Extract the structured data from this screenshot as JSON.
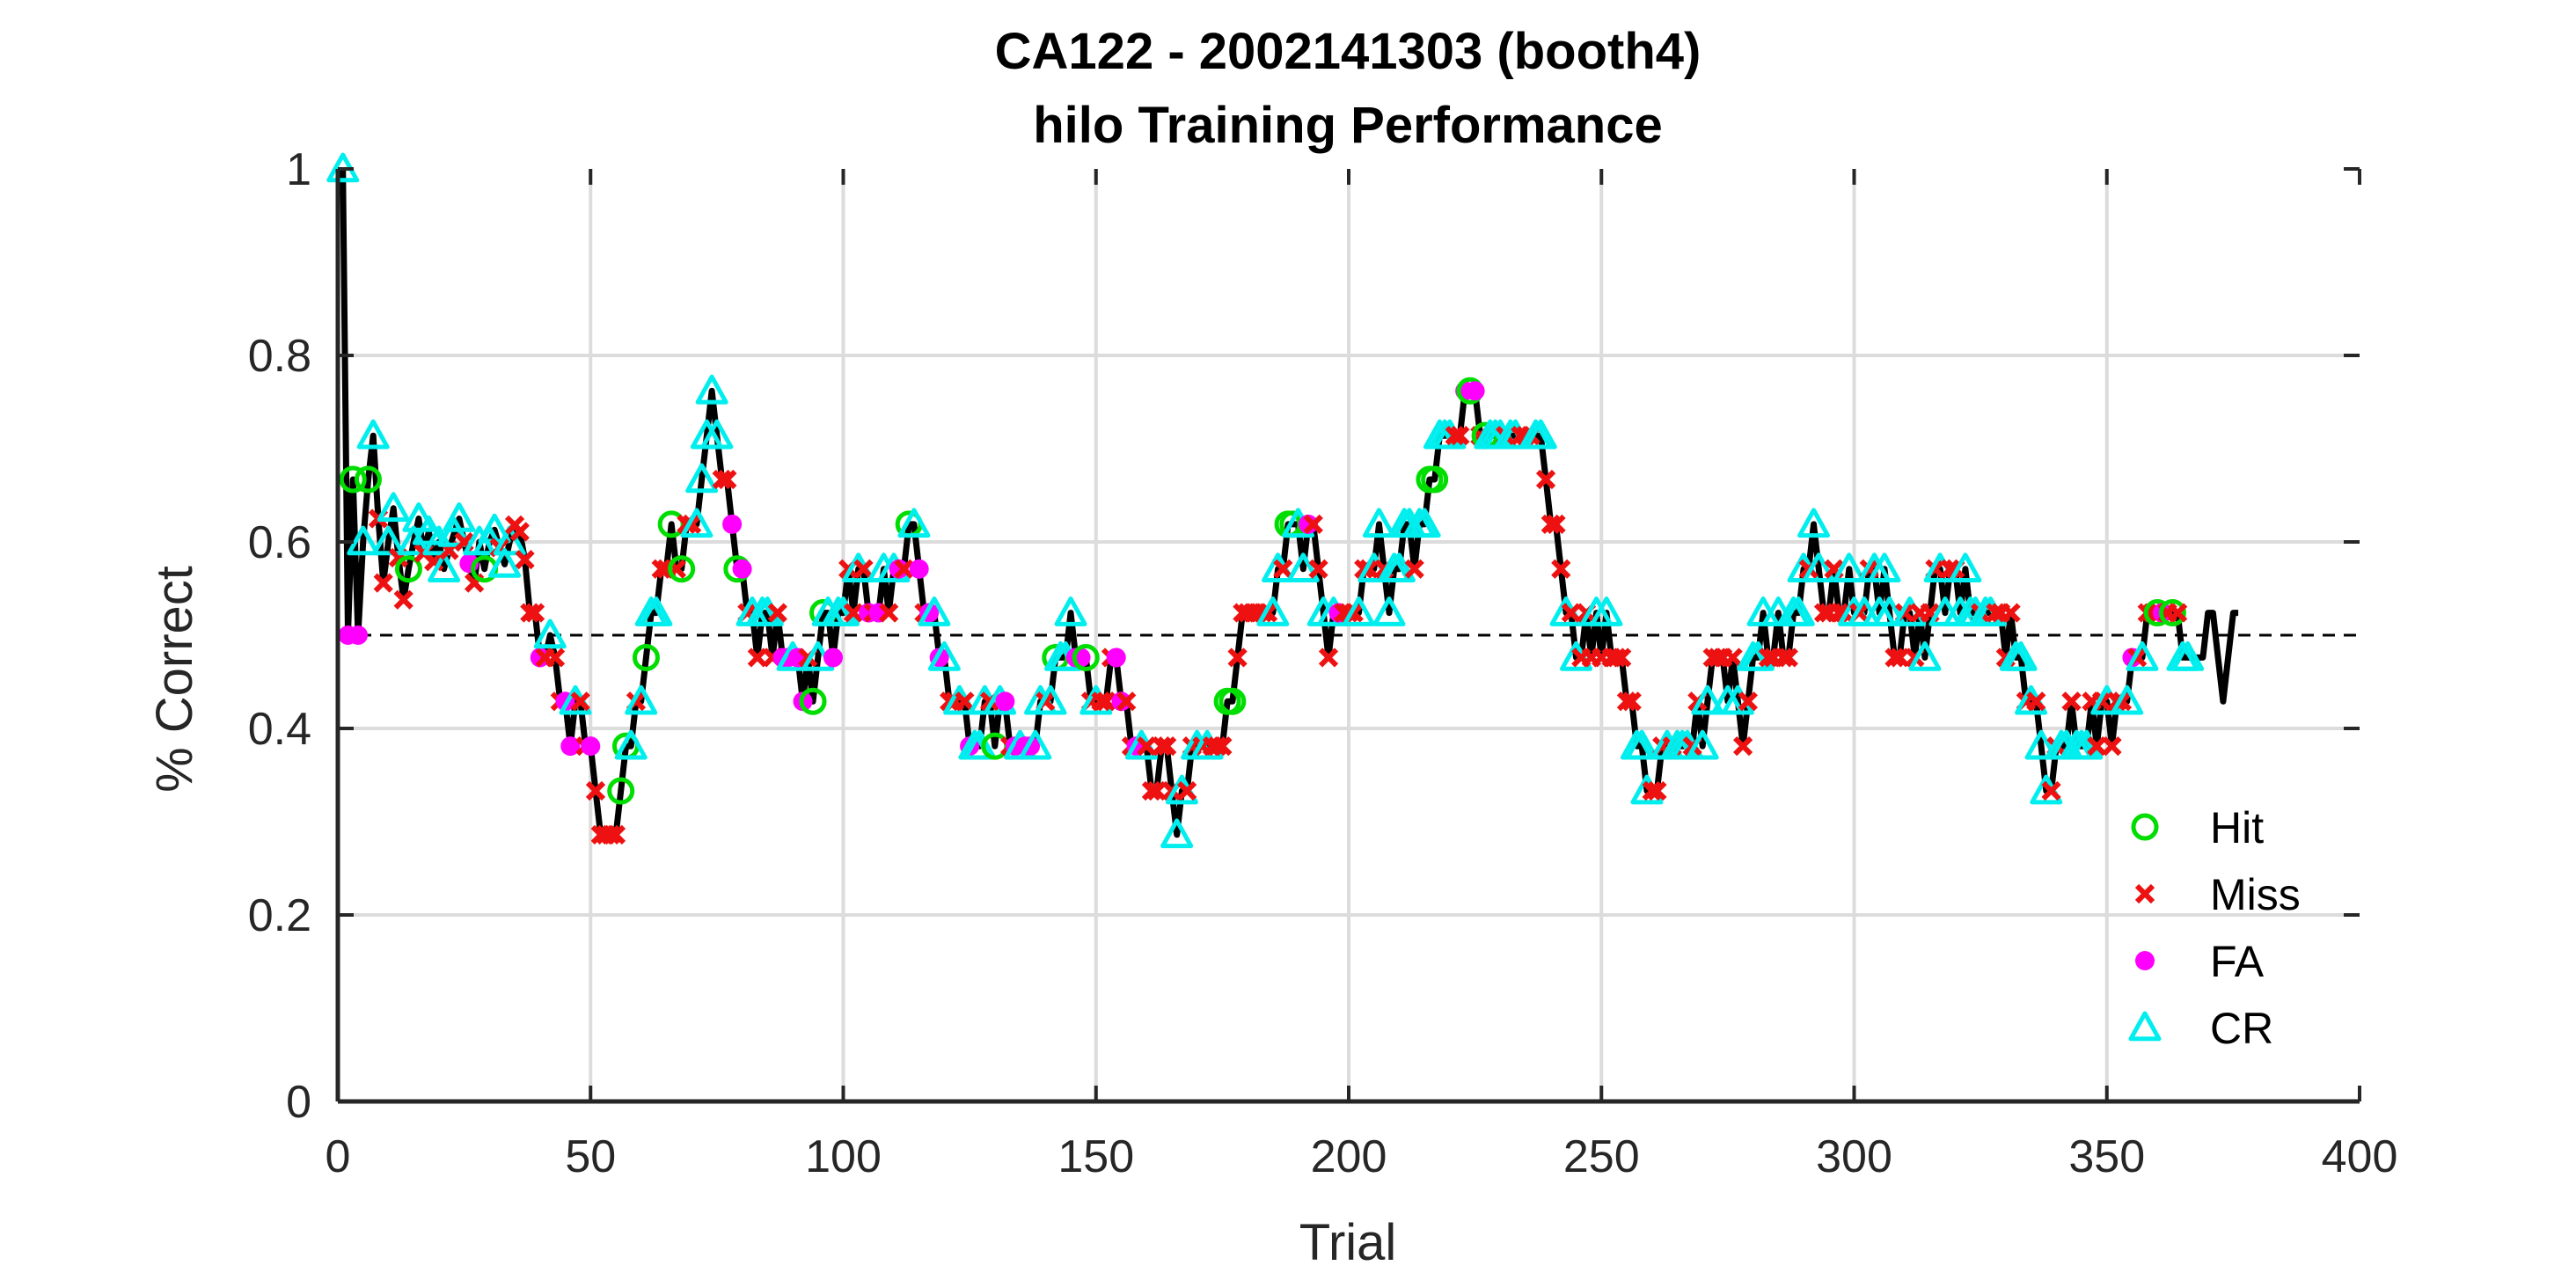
{
  "chart_data": {
    "type": "line",
    "title": "CA122 - 2002141303 (booth4)",
    "subtitle": "hilo Training Performance",
    "xlabel": "Trial",
    "ylabel": "% Correct",
    "xlim": [
      0,
      400
    ],
    "ylim": [
      0,
      1
    ],
    "xticks": [
      "0",
      "50",
      "100",
      "150",
      "200",
      "250",
      "300",
      "350",
      "400"
    ],
    "yticks": [
      "0",
      "0.2",
      "0.4",
      "0.6",
      "0.8",
      "1"
    ],
    "grid": true,
    "legend_position": "bottom-right",
    "reference_line": {
      "y": 0.5,
      "style": "dashed"
    },
    "legend": [
      {
        "name": "Hit",
        "marker": "circle",
        "color": "#00dd00"
      },
      {
        "name": "Miss",
        "marker": "x",
        "color": "#ee1111"
      },
      {
        "name": "FA",
        "marker": "dot",
        "color": "#ff00ff"
      },
      {
        "name": "CR",
        "marker": "triangle",
        "color": "#00eeee"
      }
    ],
    "x": [
      1,
      2,
      3,
      4,
      5,
      6,
      7,
      8,
      9,
      10,
      11,
      12,
      13,
      14,
      15,
      16,
      17,
      18,
      19,
      20,
      21,
      22,
      23,
      24,
      25,
      26,
      27,
      28,
      29,
      30,
      31,
      32,
      33,
      34,
      35,
      36,
      37,
      38,
      39,
      40,
      41,
      42,
      43,
      44,
      45,
      46,
      47,
      48,
      49,
      50,
      51,
      52,
      53,
      54,
      55,
      56,
      57,
      58,
      59,
      60,
      61,
      62,
      63,
      64,
      65,
      66,
      67,
      68,
      69,
      70,
      71,
      72,
      73,
      74,
      75,
      76,
      77,
      78,
      79,
      80,
      81,
      82,
      83,
      84,
      85,
      86,
      87,
      88,
      89,
      90,
      91,
      92,
      93,
      94,
      95,
      96,
      97,
      98,
      99,
      100,
      101,
      102,
      103,
      104,
      105,
      106,
      107,
      108,
      109,
      110,
      111,
      112,
      113,
      114,
      115,
      116,
      117,
      118,
      119,
      120,
      121,
      122,
      123,
      124,
      125,
      126,
      127,
      128,
      129,
      130,
      131,
      132,
      133,
      134,
      135,
      136,
      137,
      138,
      139,
      140,
      141,
      142,
      143,
      144,
      145,
      146,
      147,
      148,
      149,
      150,
      151,
      152,
      153,
      154,
      155,
      156,
      157,
      158,
      159,
      160,
      161,
      162,
      163,
      164,
      165,
      166,
      167,
      168,
      169,
      170,
      171,
      172,
      173,
      174,
      175,
      176,
      177,
      178,
      179,
      180,
      181,
      182,
      183,
      184,
      185,
      186,
      187,
      188,
      189,
      190,
      191,
      192,
      193,
      194,
      195,
      196,
      197,
      198,
      199,
      200,
      201,
      202,
      203,
      204,
      205,
      206,
      207,
      208,
      209,
      210,
      211,
      212,
      213,
      214,
      215,
      216,
      217,
      218,
      219,
      220,
      221,
      222,
      223,
      224,
      225,
      226,
      227,
      228,
      229,
      230,
      231,
      232,
      233,
      234,
      235,
      236,
      237,
      238,
      239,
      240,
      241,
      242,
      243,
      244,
      245,
      246,
      247,
      248,
      249,
      250,
      251,
      252,
      253,
      254,
      255,
      256,
      257,
      258,
      259,
      260,
      261,
      262,
      263,
      264,
      265,
      266,
      267,
      268,
      269,
      270,
      271,
      272,
      273,
      274,
      275,
      276,
      277,
      278,
      279,
      280,
      281,
      282,
      283,
      284,
      285,
      286,
      287,
      288,
      289,
      290,
      291,
      292,
      293,
      294,
      295,
      296,
      297,
      298,
      299,
      300,
      301,
      302,
      303,
      304,
      305,
      306,
      307,
      308,
      309,
      310,
      311,
      312,
      313,
      314,
      315,
      316,
      317,
      318,
      319,
      320,
      321,
      322,
      323,
      324,
      325,
      326,
      327,
      328,
      329,
      330,
      331,
      332,
      333,
      334,
      335,
      336,
      337,
      338,
      339,
      340,
      341,
      342,
      343,
      344,
      345,
      346,
      347,
      348,
      349,
      350,
      351,
      352,
      353,
      354,
      355,
      356,
      357,
      358,
      359,
      360,
      361,
      362,
      363,
      364,
      365,
      366,
      367,
      368,
      369,
      370,
      371,
      372,
      373,
      374,
      375,
      376
    ],
    "y": [
      1,
      0.5,
      0.667,
      0.5,
      0.6,
      0.667,
      0.714,
      0.625,
      0.556,
      0.6,
      0.636,
      0.583,
      0.538,
      0.571,
      0.6,
      0.625,
      0.588,
      0.611,
      0.579,
      0.6,
      0.571,
      0.591,
      0.609,
      0.625,
      0.6,
      0.577,
      0.556,
      0.6,
      0.571,
      0.6,
      0.613,
      0.594,
      0.576,
      0.6,
      0.618,
      0.611,
      0.581,
      0.524,
      0.524,
      0.476,
      0.476,
      0.5,
      0.476,
      0.429,
      0.429,
      0.381,
      0.429,
      0.429,
      0.381,
      0.381,
      0.333,
      0.286,
      0.286,
      0.286,
      0.286,
      0.333,
      0.381,
      0.381,
      0.429,
      0.429,
      0.476,
      0.524,
      0.524,
      0.571,
      0.571,
      0.619,
      0.571,
      0.571,
      0.619,
      0.619,
      0.619,
      0.667,
      0.714,
      0.762,
      0.714,
      0.667,
      0.667,
      0.619,
      0.571,
      0.571,
      0.524,
      0.524,
      0.476,
      0.524,
      0.524,
      0.476,
      0.524,
      0.476,
      0.476,
      0.476,
      0.476,
      0.429,
      0.476,
      0.429,
      0.476,
      0.524,
      0.524,
      0.476,
      0.524,
      0.524,
      0.571,
      0.524,
      0.571,
      0.571,
      0.524,
      0.524,
      0.524,
      0.571,
      0.524,
      0.571,
      0.571,
      0.571,
      0.619,
      0.619,
      0.571,
      0.524,
      0.524,
      0.524,
      0.476,
      0.476,
      0.429,
      0.429,
      0.429,
      0.429,
      0.381,
      0.381,
      0.381,
      0.429,
      0.429,
      0.381,
      0.429,
      0.429,
      0.381,
      0.381,
      0.381,
      0.381,
      0.381,
      0.381,
      0.429,
      0.429,
      0.429,
      0.476,
      0.476,
      0.476,
      0.524,
      0.476,
      0.476,
      0.476,
      0.429,
      0.429,
      0.429,
      0.429,
      0.476,
      0.476,
      0.429,
      0.429,
      0.381,
      0.381,
      0.381,
      0.381,
      0.333,
      0.333,
      0.381,
      0.381,
      0.333,
      0.286,
      0.333,
      0.333,
      0.381,
      0.381,
      0.381,
      0.381,
      0.381,
      0.381,
      0.381,
      0.429,
      0.429,
      0.476,
      0.524,
      0.524,
      0.524,
      0.524,
      0.524,
      0.524,
      0.524,
      0.571,
      0.571,
      0.619,
      0.619,
      0.619,
      0.571,
      0.619,
      0.619,
      0.571,
      0.524,
      0.476,
      0.524,
      0.524,
      0.524,
      0.524,
      0.524,
      0.524,
      0.571,
      0.571,
      0.571,
      0.619,
      0.571,
      0.524,
      0.571,
      0.571,
      0.619,
      0.619,
      0.571,
      0.619,
      0.619,
      0.667,
      0.667,
      0.714,
      0.714,
      0.714,
      0.714,
      0.714,
      0.762,
      0.762,
      0.762,
      0.714,
      0.714,
      0.714,
      0.714,
      0.714,
      0.714,
      0.714,
      0.714,
      0.714,
      0.714,
      0.714,
      0.714,
      0.714,
      0.667,
      0.619,
      0.619,
      0.571,
      0.524,
      0.524,
      0.476,
      0.476,
      0.524,
      0.476,
      0.524,
      0.476,
      0.524,
      0.476,
      0.476,
      0.476,
      0.429,
      0.429,
      0.381,
      0.381,
      0.333,
      0.333,
      0.333,
      0.381,
      0.381,
      0.381,
      0.381,
      0.381,
      0.381,
      0.381,
      0.429,
      0.381,
      0.429,
      0.476,
      0.476,
      0.476,
      0.429,
      0.476,
      0.429,
      0.381,
      0.429,
      0.476,
      0.476,
      0.524,
      0.476,
      0.476,
      0.524,
      0.476,
      0.476,
      0.524,
      0.524,
      0.571,
      0.571,
      0.619,
      0.571,
      0.524,
      0.524,
      0.571,
      0.524,
      0.524,
      0.571,
      0.524,
      0.524,
      0.524,
      0.571,
      0.571,
      0.524,
      0.571,
      0.524,
      0.476,
      0.476,
      0.524,
      0.524,
      0.476,
      0.524,
      0.476,
      0.524,
      0.571,
      0.571,
      0.524,
      0.571,
      0.571,
      0.524,
      0.571,
      0.524,
      0.524,
      0.524,
      0.524,
      0.524,
      0.524,
      0.524,
      0.476,
      0.524,
      0.476,
      0.476,
      0.429,
      0.429,
      0.429,
      0.381,
      0.333,
      0.333,
      0.381,
      0.381,
      0.381,
      0.429,
      0.381,
      0.381,
      0.381,
      0.429,
      0.381,
      0.429,
      0.429,
      0.381,
      0.429,
      0.429,
      0.429,
      0.476,
      0.476,
      0.476,
      0.524,
      0.524,
      0.524,
      0.524,
      0.524,
      0.524,
      0.524,
      0.476,
      0.476,
      0.476,
      0.476,
      0.476,
      0.524,
      0.524,
      0.476,
      0.429,
      0.476,
      0.524,
      0.524
    ],
    "outcomes": [
      "C",
      "F",
      "H",
      "F",
      "C",
      "H",
      "C",
      "M",
      "M",
      "C",
      "C",
      "M",
      "M",
      "H",
      "C",
      "C",
      "M",
      "C",
      "M",
      "C",
      "C",
      "M",
      "C",
      "C",
      "M",
      "F",
      "M",
      "C",
      "H",
      "C",
      "C",
      "M",
      "C",
      "C",
      "M",
      "M",
      "M",
      "M",
      "M",
      "F",
      "M",
      "C",
      "M",
      "M",
      "F",
      "F",
      "C",
      "M",
      "M",
      "F",
      "M",
      "M",
      "M",
      "M",
      "M",
      "H",
      "H",
      "C",
      "M",
      "C",
      "H",
      "C",
      "C",
      "M",
      "M",
      "H",
      "M",
      "H",
      "M",
      "M",
      "C",
      "C",
      "C",
      "C",
      "C",
      "M",
      "M",
      "F",
      "H",
      "F",
      "M",
      "C",
      "M",
      "C",
      "C",
      "M",
      "M",
      "F",
      "F",
      "C",
      "F",
      "F",
      "M",
      "H",
      "C",
      "H",
      "C",
      "F",
      "C",
      "C",
      "M",
      "M",
      "C",
      "M",
      "F",
      "M",
      "F",
      "C",
      "M",
      "C",
      "F",
      "M",
      "H",
      "C",
      "F",
      "M",
      "F",
      "C",
      "F",
      "C",
      "M",
      "M",
      "C",
      "M",
      "F",
      "C",
      "C",
      "C",
      "M",
      "H",
      "C",
      "F",
      "M",
      "F",
      "C",
      "F",
      "F",
      "C",
      "C",
      "M",
      "C",
      "H",
      "C",
      "C",
      "C",
      "F",
      "F",
      "H",
      "M",
      "C",
      "M",
      "M",
      "M",
      "F",
      "F",
      "M",
      "M",
      "F",
      "C",
      "M",
      "M",
      "M",
      "M",
      "M",
      "M",
      "C",
      "C",
      "M",
      "M",
      "C",
      "M",
      "C",
      "M",
      "M",
      "M",
      "H",
      "H",
      "M",
      "M",
      "M",
      "M",
      "M",
      "M",
      "M",
      "C",
      "C",
      "M",
      "H",
      "H",
      "C",
      "C",
      "F",
      "M",
      "M",
      "C",
      "M",
      "C",
      "F",
      "M",
      "M",
      "M",
      "C",
      "M",
      "M",
      "C",
      "C",
      "M",
      "C",
      "C",
      "C",
      "C",
      "C",
      "M",
      "C",
      "C",
      "H",
      "H",
      "C",
      "C",
      "C",
      "M",
      "M",
      "F",
      "H",
      "F",
      "M",
      "H",
      "C",
      "C",
      "C",
      "M",
      "C",
      "C",
      "M",
      "M",
      "M",
      "C",
      "C",
      "M",
      "M",
      "M",
      "M",
      "C",
      "M",
      "C",
      "M",
      "M",
      "M",
      "C",
      "M",
      "C",
      "M",
      "M",
      "M",
      "M",
      "M",
      "C",
      "C",
      "C",
      "M",
      "M",
      "M",
      "C",
      "M",
      "C",
      "C",
      "C",
      "M",
      "M",
      "C",
      "C",
      "M",
      "M",
      "M",
      "C",
      "M",
      "C",
      "M",
      "M",
      "C",
      "C",
      "C",
      "M",
      "M",
      "C",
      "M",
      "M",
      "C",
      "C",
      "C",
      "M",
      "C",
      "C",
      "M",
      "M",
      "M",
      "M",
      "M",
      "C",
      "C",
      "M",
      "C",
      "M",
      "C",
      "C",
      "C",
      "C",
      "M",
      "M",
      "M",
      "C",
      "M",
      "M",
      "C",
      "M",
      "M",
      "C",
      "C",
      "M",
      "M",
      "C",
      "C",
      "C",
      "C",
      "M",
      "C",
      "C",
      "M",
      "M",
      "M",
      "M",
      "C",
      "C",
      "M",
      "C",
      "M",
      "C",
      "C",
      "M",
      "M",
      "C",
      "C",
      "M",
      "C",
      "C",
      "C",
      "M",
      "M",
      "M",
      "C",
      "M",
      "M",
      "M",
      "C",
      "F",
      "M",
      "C",
      "M",
      "M",
      "H",
      "F",
      "M",
      "H",
      "M",
      "C",
      "C"
    ]
  }
}
